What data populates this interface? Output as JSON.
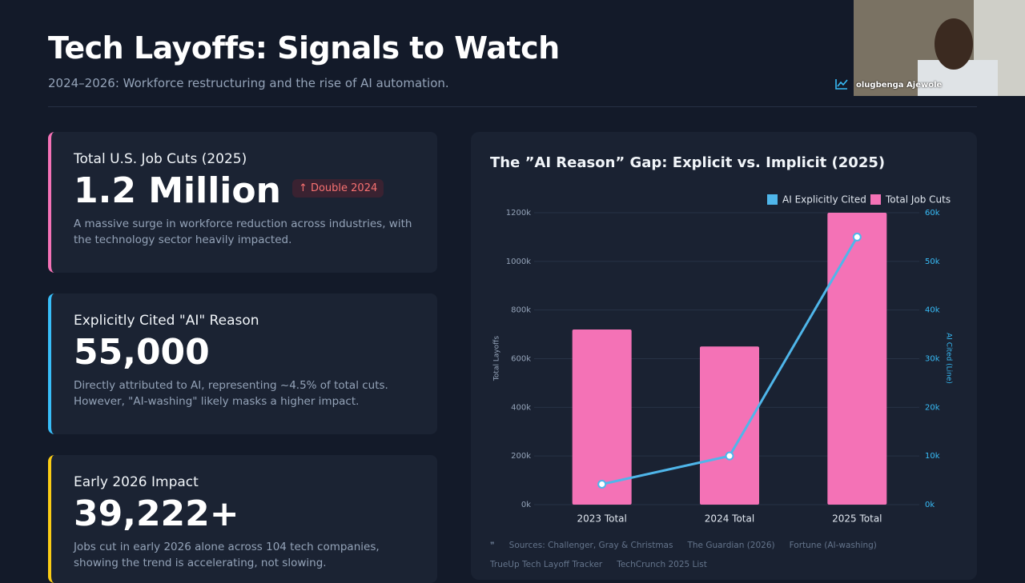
{
  "header": {
    "title": "Tech Layoffs: Signals to Watch",
    "subtitle": "2024–2026: Workforce restructuring and the rise of AI automation."
  },
  "presenter": "olugbenga Ajewole",
  "cards": [
    {
      "label": "Total U.S. Job Cuts (2025)",
      "value": "1.2 Million",
      "badge": "Double 2024",
      "description": "A massive surge in workforce reduction across industries, with the technology sector heavily impacted.",
      "color": "#f472b6"
    },
    {
      "label": "Explicitly Cited \"AI\" Reason",
      "value": "55,000",
      "description": "Directly attributed to AI, representing ~4.5% of total cuts. However, \"AI-washing\" likely masks a higher impact.",
      "color": "#38bdf8"
    },
    {
      "label": "Early 2026 Impact",
      "value": "39,222+",
      "description": "Jobs cut in early 2026 alone across 104 tech companies, showing the trend is accelerating, not slowing.",
      "color": "#facc15"
    }
  ],
  "chart_data": {
    "type": "bar",
    "title": "The ”AI Reason” Gap: Explicit vs. Implicit (2025)",
    "categories": [
      "2023 Total",
      "2024 Total",
      "2025 Total"
    ],
    "series": [
      {
        "name": "AI Explicitly Cited",
        "color": "#4fb6ea",
        "type": "line",
        "axis": "y2",
        "values": [
          4200,
          10000,
          55000
        ]
      },
      {
        "name": "Total Job Cuts",
        "color": "#f472b6",
        "type": "bar",
        "values": [
          720000,
          650000,
          1200000
        ]
      }
    ],
    "ylabel": "Total Layoffs",
    "y2label": "AI Cited (Line)",
    "ylim": [
      0,
      1200000
    ],
    "yticks": [
      {
        "value": 0,
        "label": "0k"
      },
      {
        "value": 200000,
        "label": "200k"
      },
      {
        "value": 400000,
        "label": "400k"
      },
      {
        "value": 600000,
        "label": "600k"
      },
      {
        "value": 800000,
        "label": "800k"
      },
      {
        "value": 1000000,
        "label": "1000k"
      },
      {
        "value": 1200000,
        "label": "1200k"
      }
    ],
    "y2lim": [
      0,
      60000
    ],
    "y2ticks": [
      {
        "value": 0,
        "label": "0k"
      },
      {
        "value": 10000,
        "label": "10k"
      },
      {
        "value": 20000,
        "label": "20k"
      },
      {
        "value": 30000,
        "label": "30k"
      },
      {
        "value": 40000,
        "label": "40k"
      },
      {
        "value": 50000,
        "label": "50k"
      },
      {
        "value": 60000,
        "label": "60k"
      }
    ],
    "grid": true,
    "sources": [
      "Sources: Challenger, Gray & Christmas",
      "The Guardian (2026)",
      "Fortune (AI-washing)",
      "TrueUp Tech Layoff Tracker",
      "TechCrunch 2025 List"
    ]
  }
}
